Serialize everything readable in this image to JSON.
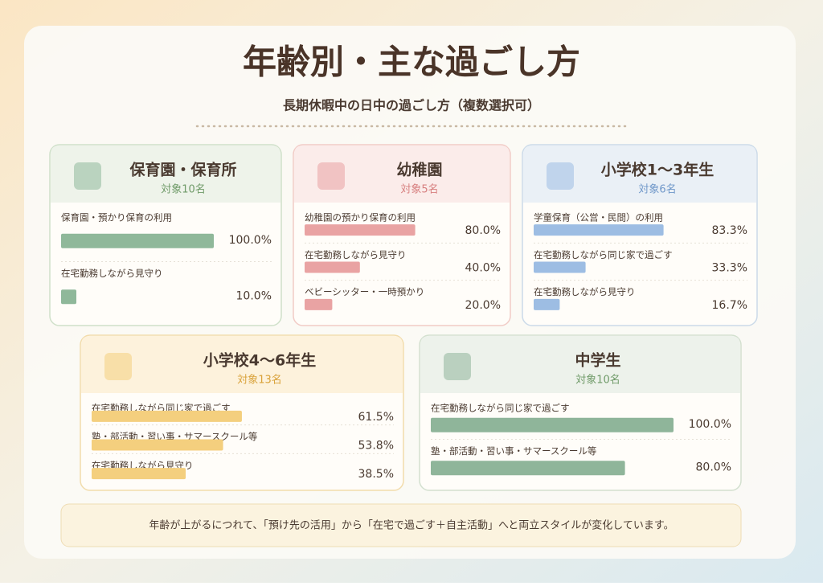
{
  "title": "年齢別・主な過ごし方",
  "subtitle": "長期休暇中の日中の過ごし方（複数選択可）",
  "chart_data": [
    {
      "type": "bar",
      "title": "保育園・保育所",
      "subtitle": "対象10名",
      "categories": [
        "保育園・預かり保育の利用",
        "在宅勤務しながら見守り"
      ],
      "values": [
        100.0,
        10.0
      ],
      "value_labels": [
        "100.0%",
        "10.0%"
      ],
      "color": "#8fb89a",
      "xlim": [
        0,
        100
      ]
    },
    {
      "type": "bar",
      "title": "幼稚園",
      "subtitle": "対象5名",
      "categories": [
        "幼稚園の預かり保育の利用",
        "在宅勤務しながら見守り",
        "ベビーシッター・一時預かり"
      ],
      "values": [
        80.0,
        40.0,
        20.0
      ],
      "value_labels": [
        "80.0%",
        "40.0%",
        "20.0%"
      ],
      "color": "#e9a3a3",
      "xlim": [
        0,
        100
      ]
    },
    {
      "type": "bar",
      "title": "小学校1～3年生",
      "subtitle": "対象6名",
      "categories": [
        "学童保育（公営・民間）の利用",
        "在宅勤務しながら同じ家で過ごす",
        "在宅勤務しながら見守り"
      ],
      "values": [
        83.3,
        33.3,
        16.7
      ],
      "value_labels": [
        "83.3%",
        "33.3%",
        "16.7%"
      ],
      "color": "#9dbde3",
      "xlim": [
        0,
        100
      ]
    },
    {
      "type": "bar",
      "title": "小学校4～6年生",
      "subtitle": "対象13名",
      "categories": [
        "在宅勤務しながら同じ家で過ごす",
        "塾・部活動・習い事・サマースクール等",
        "在宅勤務しながら見守り"
      ],
      "values": [
        61.5,
        53.8,
        38.5
      ],
      "value_labels": [
        "61.5%",
        "53.8%",
        "38.5%"
      ],
      "color": "#f4cf7e",
      "xlim": [
        0,
        100
      ]
    },
    {
      "type": "bar",
      "title": "中学生",
      "subtitle": "対象10名",
      "categories": [
        "在宅勤務しながら同じ家で過ごす",
        "塾・部活動・習い事・サマースクール等"
      ],
      "values": [
        100.0,
        80.0
      ],
      "value_labels": [
        "100.0%",
        "80.0%"
      ],
      "color": "#8fb59a",
      "xlim": [
        0,
        100
      ]
    }
  ],
  "footer": "年齢が上がるにつれて、「預け先の活用」から「在宅で過ごす＋自主活動」へと両立スタイルが変化しています。"
}
